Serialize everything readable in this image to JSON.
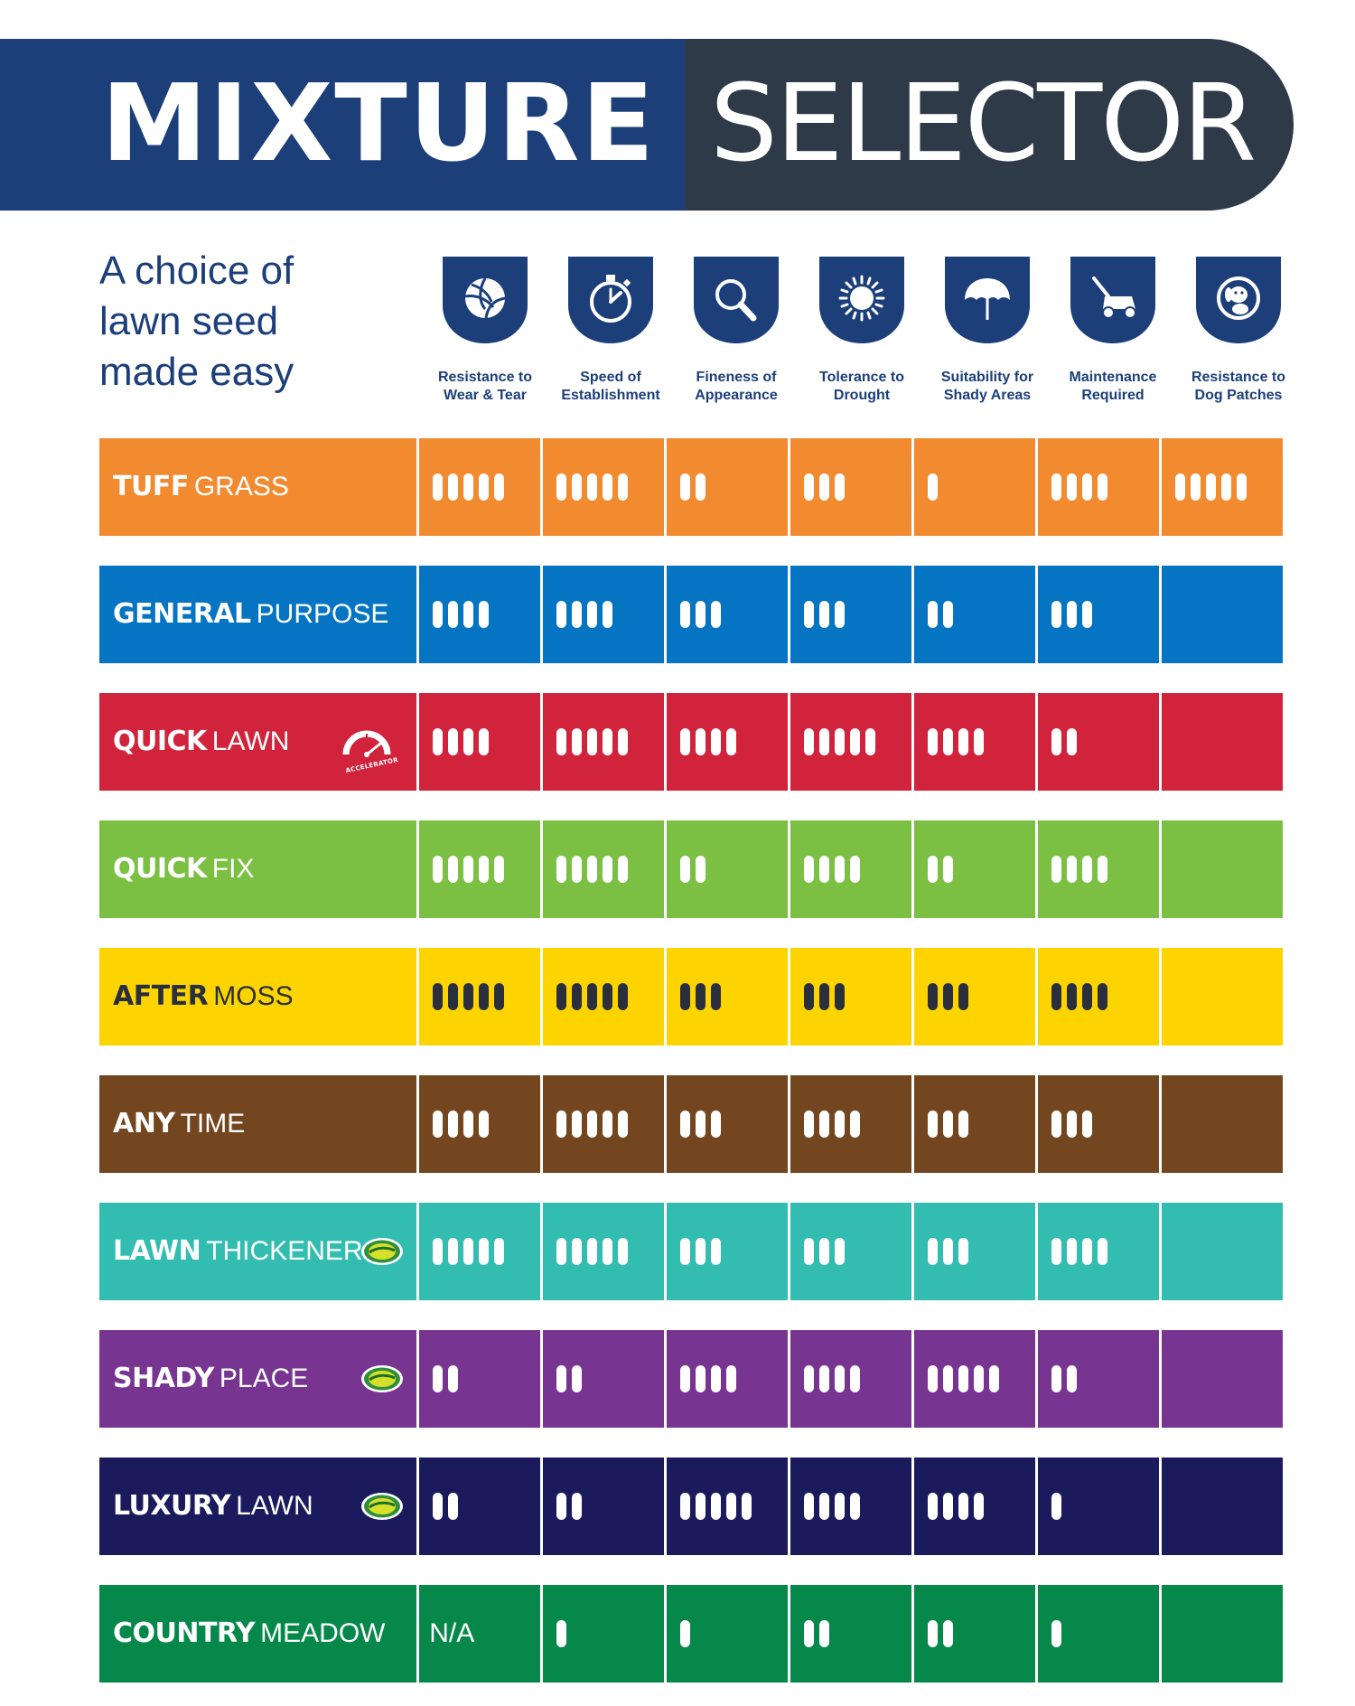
{
  "header": {
    "title_part1": "MIXTURE",
    "title_part2": "SELECTOR",
    "colors": {
      "left": "#1c3f7a",
      "right": "#2e3a48"
    }
  },
  "tagline": [
    "A choice of",
    "lawn seed",
    "made easy"
  ],
  "criteria": [
    {
      "icon": "volleyball-icon",
      "label1": "Resistance to",
      "label2": "Wear & Tear"
    },
    {
      "icon": "stopwatch-icon",
      "label1": "Speed of",
      "label2": "Establishment"
    },
    {
      "icon": "magnifier-icon",
      "label1": "Fineness of",
      "label2": "Appearance"
    },
    {
      "icon": "sun-icon",
      "label1": "Tolerance to",
      "label2": "Drought"
    },
    {
      "icon": "umbrella-icon",
      "label1": "Suitability for",
      "label2": "Shady Areas"
    },
    {
      "icon": "lawnmower-icon",
      "label1": "Maintenance",
      "label2": "Required"
    },
    {
      "icon": "dog-icon",
      "label1": "Resistance to",
      "label2": "Dog Patches"
    }
  ],
  "rows": [
    {
      "bold": "TUFF",
      "rest": "GRASS",
      "color": "#f28a30",
      "bar_color": "#ffffff",
      "name_color": "#ffffff",
      "badge": "",
      "ratings": [
        5,
        5,
        2,
        3,
        1,
        4,
        5
      ]
    },
    {
      "bold": "GENERAL",
      "rest": "PURPOSE",
      "color": "#0474c3",
      "bar_color": "#ffffff",
      "name_color": "#ffffff",
      "badge": "",
      "ratings": [
        4,
        4,
        3,
        3,
        2,
        3,
        0
      ]
    },
    {
      "bold": "QUICK",
      "rest": "LAWN",
      "color": "#d1233c",
      "bar_color": "#ffffff",
      "name_color": "#ffffff",
      "badge": "accelerator",
      "badge_text": "ACCELERATOR",
      "ratings": [
        4,
        5,
        4,
        5,
        4,
        2,
        0
      ]
    },
    {
      "bold": "QUICK",
      "rest": "FIX",
      "color": "#7bbf43",
      "bar_color": "#ffffff",
      "name_color": "#ffffff",
      "badge": "",
      "ratings": [
        5,
        5,
        2,
        4,
        2,
        4,
        0
      ]
    },
    {
      "bold": "AFTER",
      "rest": "MOSS",
      "color": "#fdd400",
      "bar_color": "#2a2f3d",
      "name_color": "#2a2f3d",
      "badge": "",
      "ratings": [
        5,
        5,
        3,
        3,
        3,
        4,
        0
      ]
    },
    {
      "bold": "ANY",
      "rest": "TIME",
      "color": "#734620",
      "bar_color": "#ffffff",
      "name_color": "#ffffff",
      "badge": "",
      "ratings": [
        4,
        5,
        3,
        4,
        3,
        3,
        0
      ]
    },
    {
      "bold": "LAWN",
      "rest": "THICKENER",
      "color": "#33bdb0",
      "bar_color": "#ffffff",
      "name_color": "#ffffff",
      "badge": "seed",
      "ratings": [
        5,
        5,
        3,
        3,
        3,
        4,
        0
      ]
    },
    {
      "bold": "SHADY",
      "rest": "PLACE",
      "color": "#773591",
      "bar_color": "#ffffff",
      "name_color": "#ffffff",
      "badge": "seed",
      "ratings": [
        2,
        2,
        4,
        4,
        5,
        2,
        0
      ]
    },
    {
      "bold": "LUXURY",
      "rest": "LAWN",
      "color": "#1b1a5c",
      "bar_color": "#ffffff",
      "name_color": "#ffffff",
      "badge": "seed",
      "ratings": [
        2,
        2,
        5,
        4,
        4,
        1,
        0
      ]
    },
    {
      "bold": "COUNTRY",
      "rest": "MEADOW",
      "color": "#06884a",
      "bar_color": "#ffffff",
      "name_color": "#ffffff",
      "badge": "",
      "na_text": "N/A",
      "ratings": [
        "N/A",
        1,
        1,
        2,
        2,
        1,
        0
      ]
    }
  ]
}
